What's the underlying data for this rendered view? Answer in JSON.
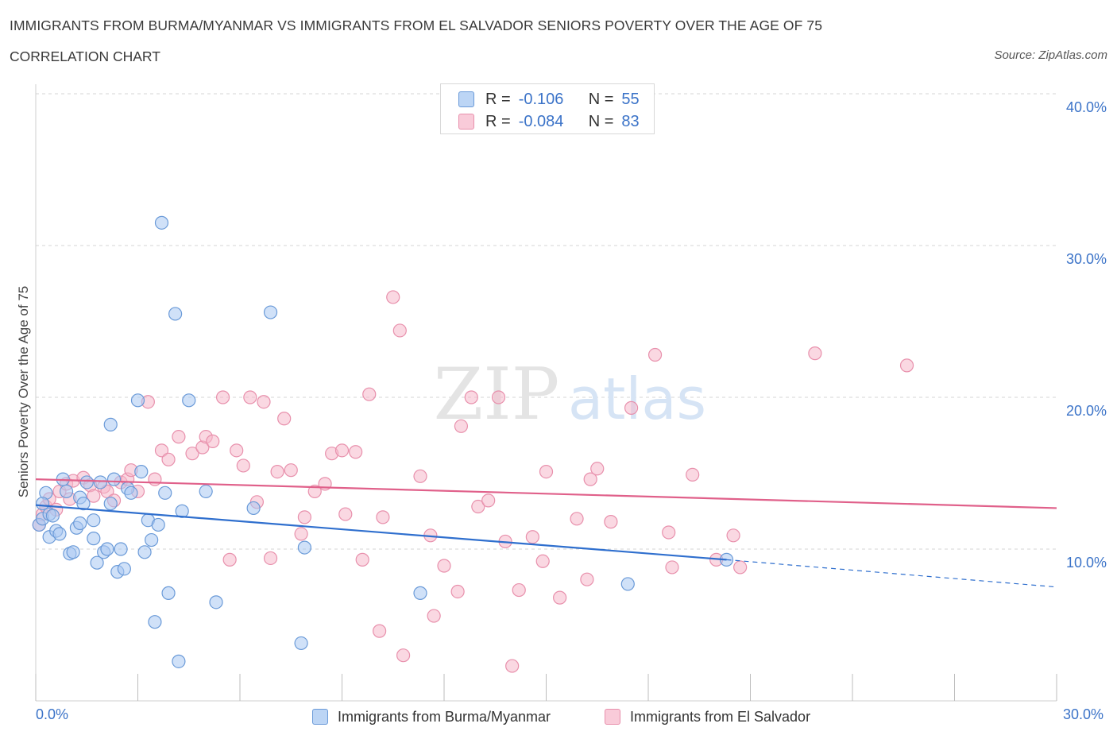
{
  "header": {
    "title": "IMMIGRANTS FROM BURMA/MYANMAR VS IMMIGRANTS FROM EL SALVADOR SENIORS POVERTY OVER THE AGE OF 75",
    "subtitle": "CORRELATION CHART",
    "source": "Source: ZipAtlas.com"
  },
  "legend": {
    "rows": [
      {
        "r_label": "R =",
        "r_value": "-0.106",
        "n_label": "N =",
        "n_value": "55",
        "color": "#a9c8f2"
      },
      {
        "r_label": "R =",
        "r_value": "-0.084",
        "n_label": "N =",
        "n_value": "83",
        "color": "#f6b8cb"
      }
    ]
  },
  "watermark": {
    "zip": "ZIP",
    "atlas": "atlas"
  },
  "colors": {
    "series1_fill": "#a9c8f2",
    "series1_stroke": "#6a9ad8",
    "series1_line": "#2f6fce",
    "series2_fill": "#f6b8cb",
    "series2_stroke": "#e890ac",
    "series2_line": "#e0608a",
    "tick_label": "#3b73c8",
    "grid": "#d5d5d5"
  },
  "chart_data": {
    "type": "scatter",
    "title": "IMMIGRANTS FROM BURMA/MYANMAR VS IMMIGRANTS FROM EL SALVADOR SENIORS POVERTY OVER THE AGE OF 75",
    "xlabel": "",
    "ylabel": "Seniors Poverty Over the Age of 75",
    "xlim": [
      0,
      30
    ],
    "ylim": [
      0,
      40
    ],
    "x_tick_labels": [
      "0.0%",
      "30.0%"
    ],
    "y_ticks": [
      10,
      20,
      30,
      40
    ],
    "y_tick_labels": [
      "10.0%",
      "20.0%",
      "30.0%",
      "40.0%"
    ],
    "grid": true,
    "series": [
      {
        "name": "Immigrants from Burma/Myanmar",
        "R": -0.106,
        "N": 55,
        "trend": {
          "x0": 0,
          "y0": 12.9,
          "x1": 20.3,
          "y1": 9.3,
          "dash_x1": 30,
          "dash_y1": 7.5
        },
        "points": [
          [
            0.1,
            11.6
          ],
          [
            0.2,
            12.0
          ],
          [
            0.3,
            13.7
          ],
          [
            0.4,
            12.3
          ],
          [
            0.4,
            10.8
          ],
          [
            0.6,
            11.2
          ],
          [
            0.7,
            11.0
          ],
          [
            0.8,
            14.6
          ],
          [
            0.9,
            13.8
          ],
          [
            1.0,
            9.7
          ],
          [
            1.1,
            9.8
          ],
          [
            1.2,
            11.4
          ],
          [
            1.3,
            11.7
          ],
          [
            1.3,
            13.4
          ],
          [
            1.4,
            13.0
          ],
          [
            1.5,
            14.4
          ],
          [
            1.7,
            10.7
          ],
          [
            1.7,
            11.9
          ],
          [
            1.8,
            9.1
          ],
          [
            1.9,
            14.4
          ],
          [
            2.0,
            9.8
          ],
          [
            2.1,
            10.0
          ],
          [
            2.2,
            18.2
          ],
          [
            2.2,
            13.0
          ],
          [
            2.3,
            14.6
          ],
          [
            2.4,
            8.5
          ],
          [
            2.5,
            10.0
          ],
          [
            2.6,
            8.7
          ],
          [
            2.7,
            14.0
          ],
          [
            2.8,
            13.7
          ],
          [
            3.0,
            19.8
          ],
          [
            3.1,
            15.1
          ],
          [
            3.2,
            9.8
          ],
          [
            3.3,
            11.9
          ],
          [
            3.4,
            10.6
          ],
          [
            3.5,
            5.2
          ],
          [
            3.6,
            11.6
          ],
          [
            3.7,
            31.5
          ],
          [
            3.8,
            13.7
          ],
          [
            3.9,
            7.1
          ],
          [
            4.1,
            25.5
          ],
          [
            4.2,
            2.6
          ],
          [
            4.3,
            12.5
          ],
          [
            4.5,
            19.8
          ],
          [
            5.0,
            13.8
          ],
          [
            5.3,
            6.5
          ],
          [
            6.4,
            12.7
          ],
          [
            6.9,
            25.6
          ],
          [
            7.9,
            10.1
          ],
          [
            7.8,
            3.8
          ],
          [
            11.3,
            7.1
          ],
          [
            17.4,
            7.7
          ],
          [
            20.3,
            9.3
          ],
          [
            0.5,
            12.2
          ],
          [
            0.2,
            13.0
          ]
        ]
      },
      {
        "name": "Immigrants from El Salvador",
        "R": -0.084,
        "N": 83,
        "trend": {
          "x0": 0,
          "y0": 14.6,
          "x1": 30,
          "y1": 12.7
        },
        "points": [
          [
            0.1,
            11.6
          ],
          [
            0.2,
            12.3
          ],
          [
            0.3,
            12.8
          ],
          [
            0.4,
            13.3
          ],
          [
            0.6,
            12.6
          ],
          [
            0.7,
            13.8
          ],
          [
            0.9,
            14.3
          ],
          [
            1.0,
            13.3
          ],
          [
            1.1,
            14.5
          ],
          [
            1.4,
            14.7
          ],
          [
            1.6,
            14.2
          ],
          [
            1.7,
            13.5
          ],
          [
            2.0,
            14.1
          ],
          [
            2.1,
            13.8
          ],
          [
            2.3,
            13.2
          ],
          [
            2.5,
            14.4
          ],
          [
            2.7,
            14.6
          ],
          [
            2.8,
            15.2
          ],
          [
            3.0,
            13.8
          ],
          [
            3.3,
            19.7
          ],
          [
            3.5,
            14.6
          ],
          [
            3.7,
            16.5
          ],
          [
            3.9,
            15.9
          ],
          [
            4.2,
            17.4
          ],
          [
            4.6,
            16.3
          ],
          [
            4.9,
            16.7
          ],
          [
            5.0,
            17.4
          ],
          [
            5.2,
            17.1
          ],
          [
            5.5,
            20.0
          ],
          [
            5.7,
            9.3
          ],
          [
            5.9,
            16.5
          ],
          [
            6.1,
            15.5
          ],
          [
            6.3,
            20.0
          ],
          [
            6.5,
            13.1
          ],
          [
            6.7,
            19.7
          ],
          [
            6.9,
            9.4
          ],
          [
            7.1,
            15.1
          ],
          [
            7.3,
            18.6
          ],
          [
            7.5,
            15.2
          ],
          [
            7.8,
            11.0
          ],
          [
            7.9,
            12.1
          ],
          [
            8.2,
            13.8
          ],
          [
            8.5,
            14.3
          ],
          [
            8.7,
            16.3
          ],
          [
            9.0,
            16.5
          ],
          [
            9.1,
            12.3
          ],
          [
            9.4,
            16.4
          ],
          [
            9.6,
            9.3
          ],
          [
            9.8,
            20.2
          ],
          [
            10.2,
            12.1
          ],
          [
            10.1,
            4.6
          ],
          [
            10.5,
            26.6
          ],
          [
            10.7,
            24.4
          ],
          [
            10.8,
            3.0
          ],
          [
            11.3,
            14.8
          ],
          [
            11.6,
            10.9
          ],
          [
            11.7,
            5.6
          ],
          [
            12.0,
            8.9
          ],
          [
            12.4,
            7.2
          ],
          [
            12.5,
            18.1
          ],
          [
            12.8,
            20.0
          ],
          [
            13.0,
            12.8
          ],
          [
            13.3,
            13.2
          ],
          [
            13.6,
            20.0
          ],
          [
            13.8,
            10.5
          ],
          [
            14.0,
            2.3
          ],
          [
            14.2,
            7.3
          ],
          [
            14.6,
            10.8
          ],
          [
            14.9,
            9.2
          ],
          [
            15.0,
            15.1
          ],
          [
            15.4,
            6.8
          ],
          [
            15.9,
            12.0
          ],
          [
            16.2,
            8.0
          ],
          [
            16.3,
            14.6
          ],
          [
            16.5,
            15.3
          ],
          [
            16.9,
            11.8
          ],
          [
            17.5,
            19.3
          ],
          [
            18.2,
            22.8
          ],
          [
            18.6,
            11.1
          ],
          [
            19.3,
            14.9
          ],
          [
            20.0,
            9.3
          ],
          [
            20.5,
            10.9
          ],
          [
            20.7,
            8.8
          ]
        ],
        "extra_points": [
          [
            18.7,
            8.8
          ],
          [
            22.9,
            22.9
          ],
          [
            25.6,
            22.1
          ]
        ]
      }
    ]
  }
}
